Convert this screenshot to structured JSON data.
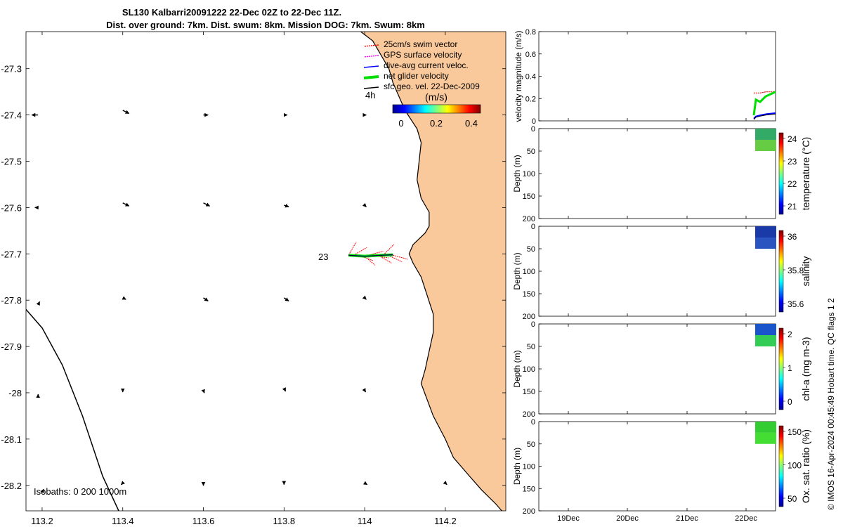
{
  "title": {
    "line1": "SL130 Kalbarri20091222 22-Dec 02Z to 22-Dec 11Z.",
    "line2": "Dist. over ground: 7km. Dist. swum: 8km. Mission DOG: 7km. Swum: 8km"
  },
  "map": {
    "x_ticks": [
      "113.2",
      "113.4",
      "113.6",
      "113.8",
      "114",
      "114.2"
    ],
    "y_ticks": [
      "-27.3",
      "-27.4",
      "-27.5",
      "-27.6",
      "-27.7",
      "-27.8",
      "-27.9",
      "-28",
      "-28.1",
      "-28.2"
    ],
    "xlim": [
      113.16,
      114.35
    ],
    "ylim": [
      -28.255,
      -27.22
    ],
    "isobaths_label": "Isobaths: 0   200  1000m",
    "annotation_4h": "4h",
    "annotation_23": "23",
    "legend": [
      {
        "label": "25cm/s swim vector",
        "color": "#ff0000",
        "style": "dotted"
      },
      {
        "label": "GPS surface velocity",
        "color": "#ff00ff",
        "style": "dotted"
      },
      {
        "label": "dive-avg current veloc.",
        "color": "#0000ff",
        "style": "solid"
      },
      {
        "label": "net glider velocity",
        "color": "#00dd00",
        "style": "thick"
      },
      {
        "label": "sfc geo. vel. 22-Dec-2009",
        "color": "#000000",
        "style": "solid"
      }
    ],
    "colorbar_label": "(m/s)",
    "colorbar_ticks": [
      "0",
      "0.2",
      "0.4"
    ],
    "land_color": "#f9c89b"
  },
  "panels": {
    "velocity": {
      "ylabel": "velocity magnitude (m/s)",
      "y_ticks": [
        "0",
        "0.2",
        "0.4",
        "0.6",
        "0.8"
      ],
      "ylim": [
        0,
        0.8
      ]
    },
    "temperature": {
      "ylabel": "temperature (°C)",
      "cb_ticks": [
        "24",
        "23",
        "22",
        "21"
      ]
    },
    "salinity": {
      "ylabel": "salinity",
      "cb_ticks": [
        "36",
        "35.8",
        "35.6"
      ]
    },
    "chla": {
      "ylabel": "chl-a (mg m-3)",
      "cb_ticks": [
        "2",
        "1",
        "0"
      ]
    },
    "oxygen": {
      "ylabel": "Ox. sat. ratio (%)",
      "cb_ticks": [
        "150",
        "100",
        "50"
      ]
    },
    "depth_label": "Depth (m)",
    "depth_ticks": [
      "0",
      "50",
      "100",
      "150",
      "200"
    ],
    "x_ticks": [
      "19Dec",
      "20Dec",
      "21Dec",
      "22Dec"
    ]
  },
  "credit": "© IMOS 16-Apr-2024 00:45:49 Hobart time. QC flags 1  2",
  "chart_data": {
    "type": "scatter",
    "title": "SL130 Kalbarri20091222 22-Dec 02Z to 22-Dec 11Z.",
    "subtitle": "Dist. over ground: 7km. Dist. swum: 8km. Mission DOG: 7km. Swum: 8km",
    "glider_track": {
      "lon": [
        113.96,
        114.0,
        114.04,
        114.07
      ],
      "lat": [
        -27.703,
        -27.705,
        -27.703,
        -27.702
      ]
    },
    "surface_vectors": [
      {
        "lon": 113.19,
        "lat": -27.4,
        "u": -0.02,
        "v": 0.0
      },
      {
        "lon": 113.4,
        "lat": -27.39,
        "u": 0.02,
        "v": -0.01
      },
      {
        "lon": 113.6,
        "lat": -27.4,
        "u": 0.015,
        "v": 0.0
      },
      {
        "lon": 113.8,
        "lat": -27.4,
        "u": 0.01,
        "v": 0.0
      },
      {
        "lon": 114.0,
        "lat": -27.4,
        "u": 0.005,
        "v": 0.0
      },
      {
        "lon": 113.19,
        "lat": -27.6,
        "u": -0.01,
        "v": 0.0
      },
      {
        "lon": 113.4,
        "lat": -27.59,
        "u": 0.02,
        "v": -0.01
      },
      {
        "lon": 113.6,
        "lat": -27.59,
        "u": 0.02,
        "v": -0.01
      },
      {
        "lon": 113.8,
        "lat": -27.595,
        "u": 0.015,
        "v": -0.005
      },
      {
        "lon": 114.0,
        "lat": -27.595,
        "u": 0.005,
        "v": -0.005
      },
      {
        "lon": 113.19,
        "lat": -27.81,
        "u": 0.005,
        "v": 0.01
      },
      {
        "lon": 113.4,
        "lat": -27.795,
        "u": 0.01,
        "v": -0.005
      },
      {
        "lon": 113.6,
        "lat": -27.795,
        "u": 0.015,
        "v": -0.01
      },
      {
        "lon": 113.8,
        "lat": -27.795,
        "u": 0.015,
        "v": -0.01
      },
      {
        "lon": 114.0,
        "lat": -27.795,
        "u": 0.005,
        "v": -0.005
      },
      {
        "lon": 113.19,
        "lat": -28.01,
        "u": 0.0,
        "v": 0.01
      },
      {
        "lon": 113.4,
        "lat": -27.995,
        "u": 0.0,
        "v": -0.005
      },
      {
        "lon": 113.6,
        "lat": -27.995,
        "u": 0.003,
        "v": -0.008
      },
      {
        "lon": 113.8,
        "lat": -27.99,
        "u": 0.005,
        "v": -0.01
      },
      {
        "lon": 114.0,
        "lat": -27.995,
        "u": 0.003,
        "v": -0.005
      },
      {
        "lon": 113.2,
        "lat": -28.215,
        "u": 0.005,
        "v": 0.01
      },
      {
        "lon": 113.4,
        "lat": -28.195,
        "u": -0.005,
        "v": -0.005
      },
      {
        "lon": 113.6,
        "lat": -28.195,
        "u": 0.0,
        "v": -0.008
      },
      {
        "lon": 113.8,
        "lat": -28.195,
        "u": 0.0,
        "v": -0.005
      },
      {
        "lon": 114.0,
        "lat": -28.195,
        "u": 0.008,
        "v": -0.005
      },
      {
        "lon": 114.2,
        "lat": -28.195,
        "u": 0.005,
        "v": -0.005
      }
    ],
    "coastline": {
      "lon": [
        114.34,
        114.325,
        114.29,
        114.26,
        114.24,
        114.22,
        114.2,
        114.17,
        114.14,
        114.15,
        114.16,
        114.17,
        114.17,
        114.155,
        114.14,
        114.12,
        114.11,
        114.12,
        114.15,
        114.16,
        114.16,
        114.14,
        114.13,
        114.135,
        114.14,
        114.13,
        114.1,
        114.085,
        114.07,
        114.06,
        114.04,
        114.02,
        113.99
      ],
      "lat": [
        -28.255,
        -28.24,
        -28.21,
        -28.18,
        -28.16,
        -28.14,
        -28.1,
        -28.05,
        -27.98,
        -27.95,
        -27.91,
        -27.87,
        -27.83,
        -27.79,
        -27.75,
        -27.72,
        -27.7,
        -27.68,
        -27.655,
        -27.64,
        -27.61,
        -27.58,
        -27.54,
        -27.5,
        -27.46,
        -27.43,
        -27.39,
        -27.36,
        -27.33,
        -27.3,
        -27.27,
        -27.24,
        -27.22
      ]
    },
    "isobath_1000m": {
      "lon": [
        113.16,
        113.2,
        113.25,
        113.3,
        113.35,
        113.39
      ],
      "lat": [
        -27.82,
        -27.86,
        -27.94,
        -28.05,
        -28.18,
        -28.255
      ]
    },
    "velocity_panel": {
      "x_ticks": [
        "19Dec",
        "20Dec",
        "21Dec",
        "22Dec"
      ],
      "swim_speed": [
        0.25,
        0.25,
        0.25,
        0.26,
        0.26
      ],
      "net_velocity": [
        0.05,
        0.19,
        0.17,
        0.22,
        0.26
      ],
      "current_velocity": [
        0.02,
        0.04,
        0.05,
        0.06,
        0.07
      ],
      "ylim": [
        0,
        0.8
      ]
    },
    "profiles": {
      "depth_range": [
        0,
        50
      ],
      "ylim": [
        200,
        0
      ],
      "temperature_range": [
        20.4,
        24.8
      ],
      "salinity_range": [
        35.5,
        36.05
      ],
      "chla_range": [
        0,
        2
      ],
      "oxygen_range": [
        25,
        175
      ]
    }
  }
}
